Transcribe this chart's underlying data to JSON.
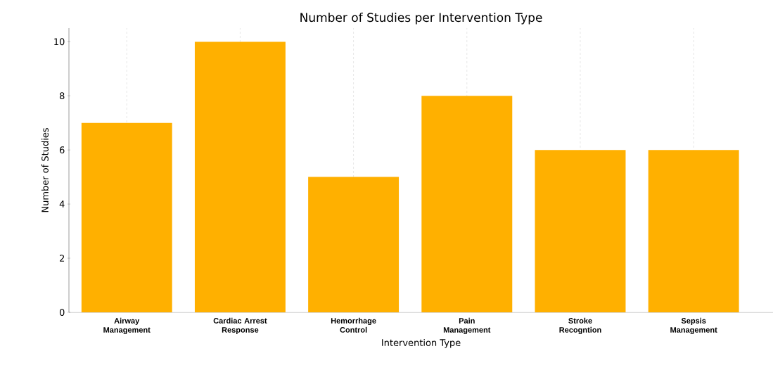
{
  "chart_data": {
    "type": "bar",
    "title": "Number of Studies per Intervention Type",
    "xlabel": "Intervention Type",
    "ylabel": "Number of Studies",
    "categories": [
      "Airway Management",
      "Cardiac Arrest Response",
      "Hemorrhage Control",
      "Pain Management",
      "Stroke Recogntion",
      "Sepsis Management"
    ],
    "values": [
      7,
      10,
      5,
      8,
      6,
      6
    ],
    "color": "#ffb000",
    "ylim": [
      0,
      10.5
    ],
    "yticks": [
      0,
      2,
      4,
      6,
      8,
      10
    ],
    "grid": "x"
  }
}
